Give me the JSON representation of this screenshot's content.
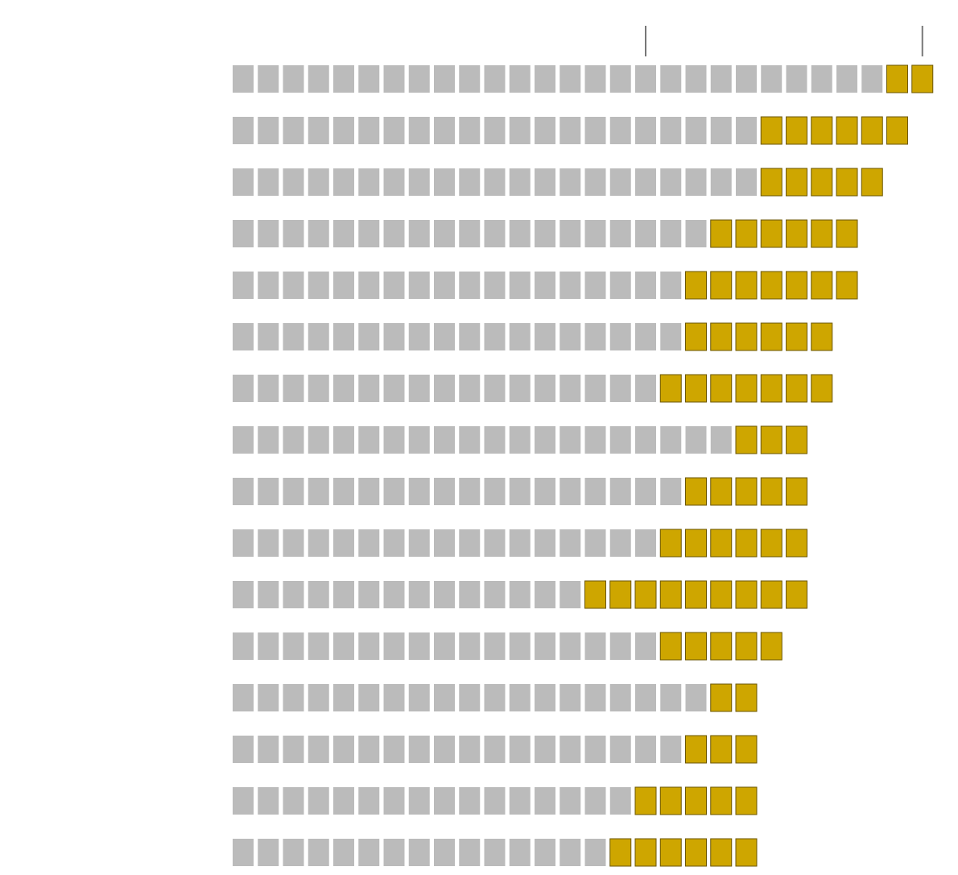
{
  "chart_data": {
    "type": "waffle-bar",
    "unit_note": "",
    "colors": {
      "gray": "#bbbbbb",
      "highlight": "#cea600",
      "highlight_stroke": "#6b5600",
      "tick": "#777777"
    },
    "top_markers": [
      16,
      27
    ],
    "rows": [
      {
        "gray": 26,
        "highlight": 2
      },
      {
        "gray": 21,
        "highlight": 6
      },
      {
        "gray": 21,
        "highlight": 5
      },
      {
        "gray": 19,
        "highlight": 6
      },
      {
        "gray": 18,
        "highlight": 7
      },
      {
        "gray": 18,
        "highlight": 6
      },
      {
        "gray": 17,
        "highlight": 7
      },
      {
        "gray": 20,
        "highlight": 3
      },
      {
        "gray": 18,
        "highlight": 5
      },
      {
        "gray": 17,
        "highlight": 6
      },
      {
        "gray": 14,
        "highlight": 9
      },
      {
        "gray": 17,
        "highlight": 5
      },
      {
        "gray": 19,
        "highlight": 2
      },
      {
        "gray": 18,
        "highlight": 3
      },
      {
        "gray": 16,
        "highlight": 5
      },
      {
        "gray": 15,
        "highlight": 6
      }
    ]
  }
}
